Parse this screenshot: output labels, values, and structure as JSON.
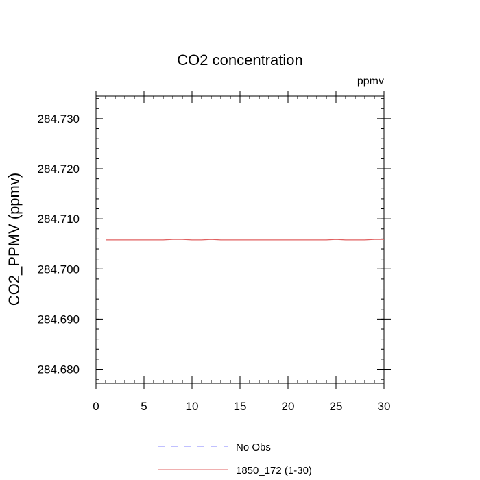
{
  "chart_data": {
    "type": "line",
    "title": "CO2 concentration",
    "units": "ppmv",
    "xlabel": "",
    "ylabel": "CO2_PPMV  (ppmv)",
    "xlim": [
      0,
      30
    ],
    "ylim": [
      284.6772,
      284.7345
    ],
    "x_ticks": [
      0,
      5,
      10,
      15,
      20,
      25,
      30
    ],
    "x_minor_step": 1,
    "y_ticks": [
      284.68,
      284.69,
      284.7,
      284.71,
      284.72,
      284.73
    ],
    "y_tick_labels": [
      "284.680",
      "284.690",
      "284.700",
      "284.710",
      "284.720",
      "284.730"
    ],
    "y_minor_step": 0.002,
    "legend": [
      {
        "name": "No Obs",
        "color": "#8080ff",
        "style": "dashed"
      },
      {
        "name": "1850_172 (1-30)",
        "color": "#e06060",
        "style": "solid"
      }
    ],
    "series": [
      {
        "name": "1850_172 (1-30)",
        "color": "#e06060",
        "x": [
          1,
          2,
          3,
          4,
          5,
          6,
          7,
          8,
          9,
          10,
          11,
          12,
          13,
          14,
          15,
          16,
          17,
          18,
          19,
          20,
          21,
          22,
          23,
          24,
          25,
          26,
          27,
          28,
          29,
          30
        ],
        "values": [
          284.7058,
          284.7058,
          284.7058,
          284.7058,
          284.7058,
          284.7058,
          284.7058,
          284.7059,
          284.7059,
          284.7058,
          284.7058,
          284.7059,
          284.7058,
          284.7058,
          284.7058,
          284.7058,
          284.7058,
          284.7058,
          284.7058,
          284.7058,
          284.7058,
          284.7058,
          284.7058,
          284.7058,
          284.7059,
          284.7058,
          284.7058,
          284.7058,
          284.7059,
          284.7059
        ]
      }
    ]
  }
}
